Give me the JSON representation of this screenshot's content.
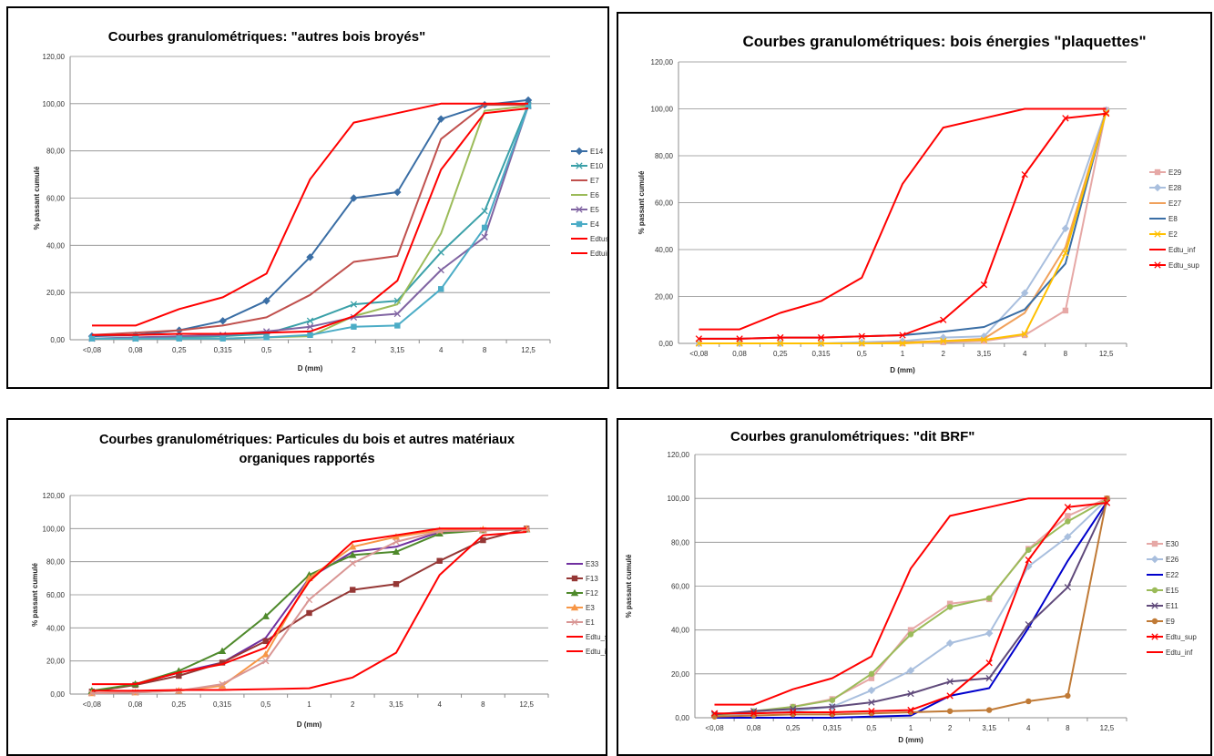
{
  "chart_data": [
    {
      "type": "line",
      "title": [
        "Courbes granulométriques: \"autres bois broyés\""
      ],
      "xlabel": "D (mm)",
      "ylabel": "% passant cumulé",
      "categories": [
        "<0,08",
        "0,08",
        "0,25",
        "0,315",
        "0,5",
        "1",
        "2",
        "3,15",
        "4",
        "8",
        "12,5"
      ],
      "y_ticks": [
        "0,00",
        "20,00",
        "40,00",
        "60,00",
        "80,00",
        "100,00",
        "120,00"
      ],
      "ylim": [
        0,
        120
      ],
      "grid": true,
      "legend_position": "right",
      "series": [
        {
          "name": "E14",
          "color": "#3a6ea5",
          "marker": "diamond",
          "values": [
            1.5,
            2,
            4,
            8,
            16.5,
            35,
            60,
            62.5,
            93.5,
            99.5,
            101.5
          ]
        },
        {
          "name": "E10",
          "color": "#3aa0a8",
          "marker": "x",
          "values": [
            0.5,
            0.5,
            1,
            1.5,
            2.5,
            8,
            15,
            16.5,
            37,
            54.5,
            99.5
          ]
        },
        {
          "name": "E7",
          "color": "#c0504d",
          "marker": "none",
          "values": [
            2,
            3,
            4,
            6,
            9.5,
            19,
            33,
            35.5,
            85,
            99.5,
            99.5
          ]
        },
        {
          "name": "E6",
          "color": "#9bbb59",
          "marker": "none",
          "values": [
            0.5,
            0.5,
            0.5,
            0.5,
            1,
            1.5,
            10,
            15,
            45,
            97,
            99
          ]
        },
        {
          "name": "E5",
          "color": "#8064a2",
          "marker": "x",
          "values": [
            0.5,
            1,
            1.5,
            2,
            3.5,
            5.5,
            9.5,
            11,
            29.5,
            43.5,
            99
          ]
        },
        {
          "name": "E4",
          "color": "#4bacc6",
          "marker": "square",
          "values": [
            0.5,
            0.5,
            0.5,
            0.5,
            1,
            2,
            5.5,
            6,
            21.5,
            47.5,
            99
          ]
        },
        {
          "name": "Edtus",
          "color": "#ff0000",
          "marker": "none",
          "values": [
            6,
            6,
            13,
            18,
            28,
            68,
            92,
            96,
            100,
            100,
            100
          ]
        },
        {
          "name": "Edtuinf",
          "color": "#ff0000",
          "marker": "none",
          "values": [
            2,
            2,
            2.5,
            2.5,
            3,
            3.5,
            10,
            25,
            72,
            96,
            98
          ]
        }
      ]
    },
    {
      "type": "line",
      "title": [
        "Courbes granulométriques: bois énergies \"plaquettes\""
      ],
      "xlabel": "D (mm)",
      "ylabel": "% passant cumulé",
      "categories": [
        "<0,08",
        "0,08",
        "0,25",
        "0,315",
        "0,5",
        "1",
        "2",
        "3,15",
        "4",
        "8",
        "12,5"
      ],
      "y_ticks": [
        "0,00",
        "20,00",
        "40,00",
        "60,00",
        "80,00",
        "100,00",
        "120,00"
      ],
      "ylim": [
        0,
        120
      ],
      "grid": true,
      "legend_position": "right",
      "series": [
        {
          "name": "E29",
          "color": "#e6a8a6",
          "marker": "square",
          "values": [
            0,
            0,
            0,
            0,
            0,
            0,
            0.5,
            1,
            3.5,
            14,
            99.5
          ]
        },
        {
          "name": "E28",
          "color": "#a9bfde",
          "marker": "diamond",
          "values": [
            0,
            0,
            0,
            0,
            0.5,
            1,
            2.5,
            3,
            21.5,
            49,
            99.5
          ]
        },
        {
          "name": "E27",
          "color": "#f0a15c",
          "marker": "none",
          "values": [
            0,
            0,
            0,
            0,
            0,
            0.5,
            1,
            2,
            13,
            41,
            99
          ]
        },
        {
          "name": "E8",
          "color": "#3a6ea5",
          "marker": "none",
          "values": [
            2,
            2,
            2.5,
            2.5,
            3,
            3.5,
            5,
            7,
            14.5,
            34,
            99
          ]
        },
        {
          "name": "E2",
          "color": "#ffc000",
          "marker": "x",
          "values": [
            0,
            0,
            0,
            0,
            0,
            0,
            1,
            1.5,
            4,
            38.5,
            98.5
          ]
        },
        {
          "name": "Edtu_inf",
          "color": "#ff0000",
          "marker": "none",
          "values": [
            6,
            6,
            13,
            18,
            28,
            68,
            92,
            96,
            100,
            100,
            100
          ]
        },
        {
          "name": "Edtu_sup",
          "color": "#ff0000",
          "marker": "x",
          "values": [
            2,
            2,
            2.5,
            2.5,
            3,
            3.5,
            10,
            25,
            72,
            96,
            98
          ]
        }
      ]
    },
    {
      "type": "line",
      "title": [
        "Courbes granulométriques: Particules du bois et autres matériaux",
        "organiques rapportés"
      ],
      "xlabel": "D (mm)",
      "ylabel": "% passant cumulé",
      "categories": [
        "<0,08",
        "0,08",
        "0,25",
        "0,315",
        "0,5",
        "1",
        "2",
        "3,15",
        "4",
        "8",
        "12,5"
      ],
      "y_ticks": [
        "0,00",
        "20,00",
        "40,00",
        "60,00",
        "80,00",
        "100,00",
        "120,00"
      ],
      "ylim": [
        0,
        120
      ],
      "grid": true,
      "legend_position": "right",
      "series": [
        {
          "name": "E33",
          "color": "#7030a0",
          "marker": "none",
          "values": [
            1.5,
            6,
            13,
            19,
            34,
            70,
            86,
            89,
            98,
            99,
            100
          ]
        },
        {
          "name": "F13",
          "color": "#953735",
          "marker": "square",
          "values": [
            1.5,
            5.5,
            11,
            19,
            32,
            49,
            63,
            66.5,
            80.5,
            93,
            100
          ]
        },
        {
          "name": "F12",
          "color": "#4f8a2c",
          "marker": "triangle",
          "values": [
            2,
            6,
            14,
            26,
            47,
            72,
            84,
            86,
            97,
            99,
            99.5
          ]
        },
        {
          "name": "E3",
          "color": "#f79646",
          "marker": "triangle",
          "values": [
            0.5,
            1,
            2,
            5,
            24,
            70,
            89,
            95,
            99,
            99.5,
            100
          ]
        },
        {
          "name": "E1",
          "color": "#d99694",
          "marker": "x",
          "values": [
            0.5,
            1,
            2,
            6,
            20,
            57,
            79,
            92,
            98.5,
            99,
            99.5
          ]
        },
        {
          "name": "Edtu_sup",
          "color": "#ff0000",
          "marker": "none",
          "values": [
            6,
            6,
            13,
            18,
            28,
            68,
            92,
            96,
            100,
            100,
            100
          ]
        },
        {
          "name": "Edtu_inf",
          "color": "#ff0000",
          "marker": "none",
          "values": [
            2,
            2,
            2.5,
            2.5,
            3,
            3.5,
            10,
            25,
            72,
            96,
            98
          ]
        }
      ]
    },
    {
      "type": "line",
      "title": [
        "Courbes granulométriques: \"dit BRF\""
      ],
      "xlabel": "D (mm)",
      "ylabel": "% passant cumulé",
      "categories": [
        "<0,08",
        "0,08",
        "0,25",
        "0,315",
        "0,5",
        "1",
        "2",
        "3,15",
        "4",
        "8",
        "12,5"
      ],
      "y_ticks": [
        "0,00",
        "20,00",
        "40,00",
        "60,00",
        "80,00",
        "100,00",
        "120,00"
      ],
      "ylim": [
        0,
        120
      ],
      "grid": true,
      "legend_position": "right",
      "series": [
        {
          "name": "E30",
          "color": "#e6a8a6",
          "marker": "square",
          "values": [
            1,
            2.5,
            5,
            8.5,
            18,
            40,
            52,
            54,
            77,
            92,
            100
          ]
        },
        {
          "name": "E26",
          "color": "#a9bfde",
          "marker": "diamond",
          "values": [
            1,
            2,
            3,
            5,
            12.5,
            21.5,
            34,
            38.5,
            69,
            82.5,
            99.5
          ]
        },
        {
          "name": "E22",
          "color": "#0000cc",
          "marker": "none",
          "values": [
            0,
            0,
            0,
            0,
            0.5,
            1,
            10,
            13.5,
            41,
            71.5,
            98.5
          ]
        },
        {
          "name": "E15",
          "color": "#9bbb59",
          "marker": "circle",
          "values": [
            1,
            3,
            5,
            8,
            20,
            38,
            50.5,
            54.5,
            76.5,
            89.5,
            99.5
          ]
        },
        {
          "name": "E11",
          "color": "#604a7b",
          "marker": "x",
          "values": [
            1.5,
            3,
            4,
            5,
            7,
            11,
            16.5,
            18,
            42.5,
            59.5,
            98
          ]
        },
        {
          "name": "E9",
          "color": "#c07a36",
          "marker": "circle",
          "values": [
            0.5,
            1,
            1.5,
            1.5,
            2,
            2.5,
            3,
            3.5,
            7.5,
            10,
            100
          ]
        },
        {
          "name": "Edtu_sup",
          "color": "#ff0000",
          "marker": "x",
          "values": [
            2,
            2,
            2.5,
            2.5,
            3,
            3.5,
            10,
            25,
            72,
            96,
            98
          ]
        },
        {
          "name": "Edtu_inf",
          "color": "#ff0000",
          "marker": "none",
          "values": [
            6,
            6,
            13,
            18,
            28,
            68,
            92,
            96,
            100,
            100,
            100
          ]
        }
      ]
    }
  ]
}
